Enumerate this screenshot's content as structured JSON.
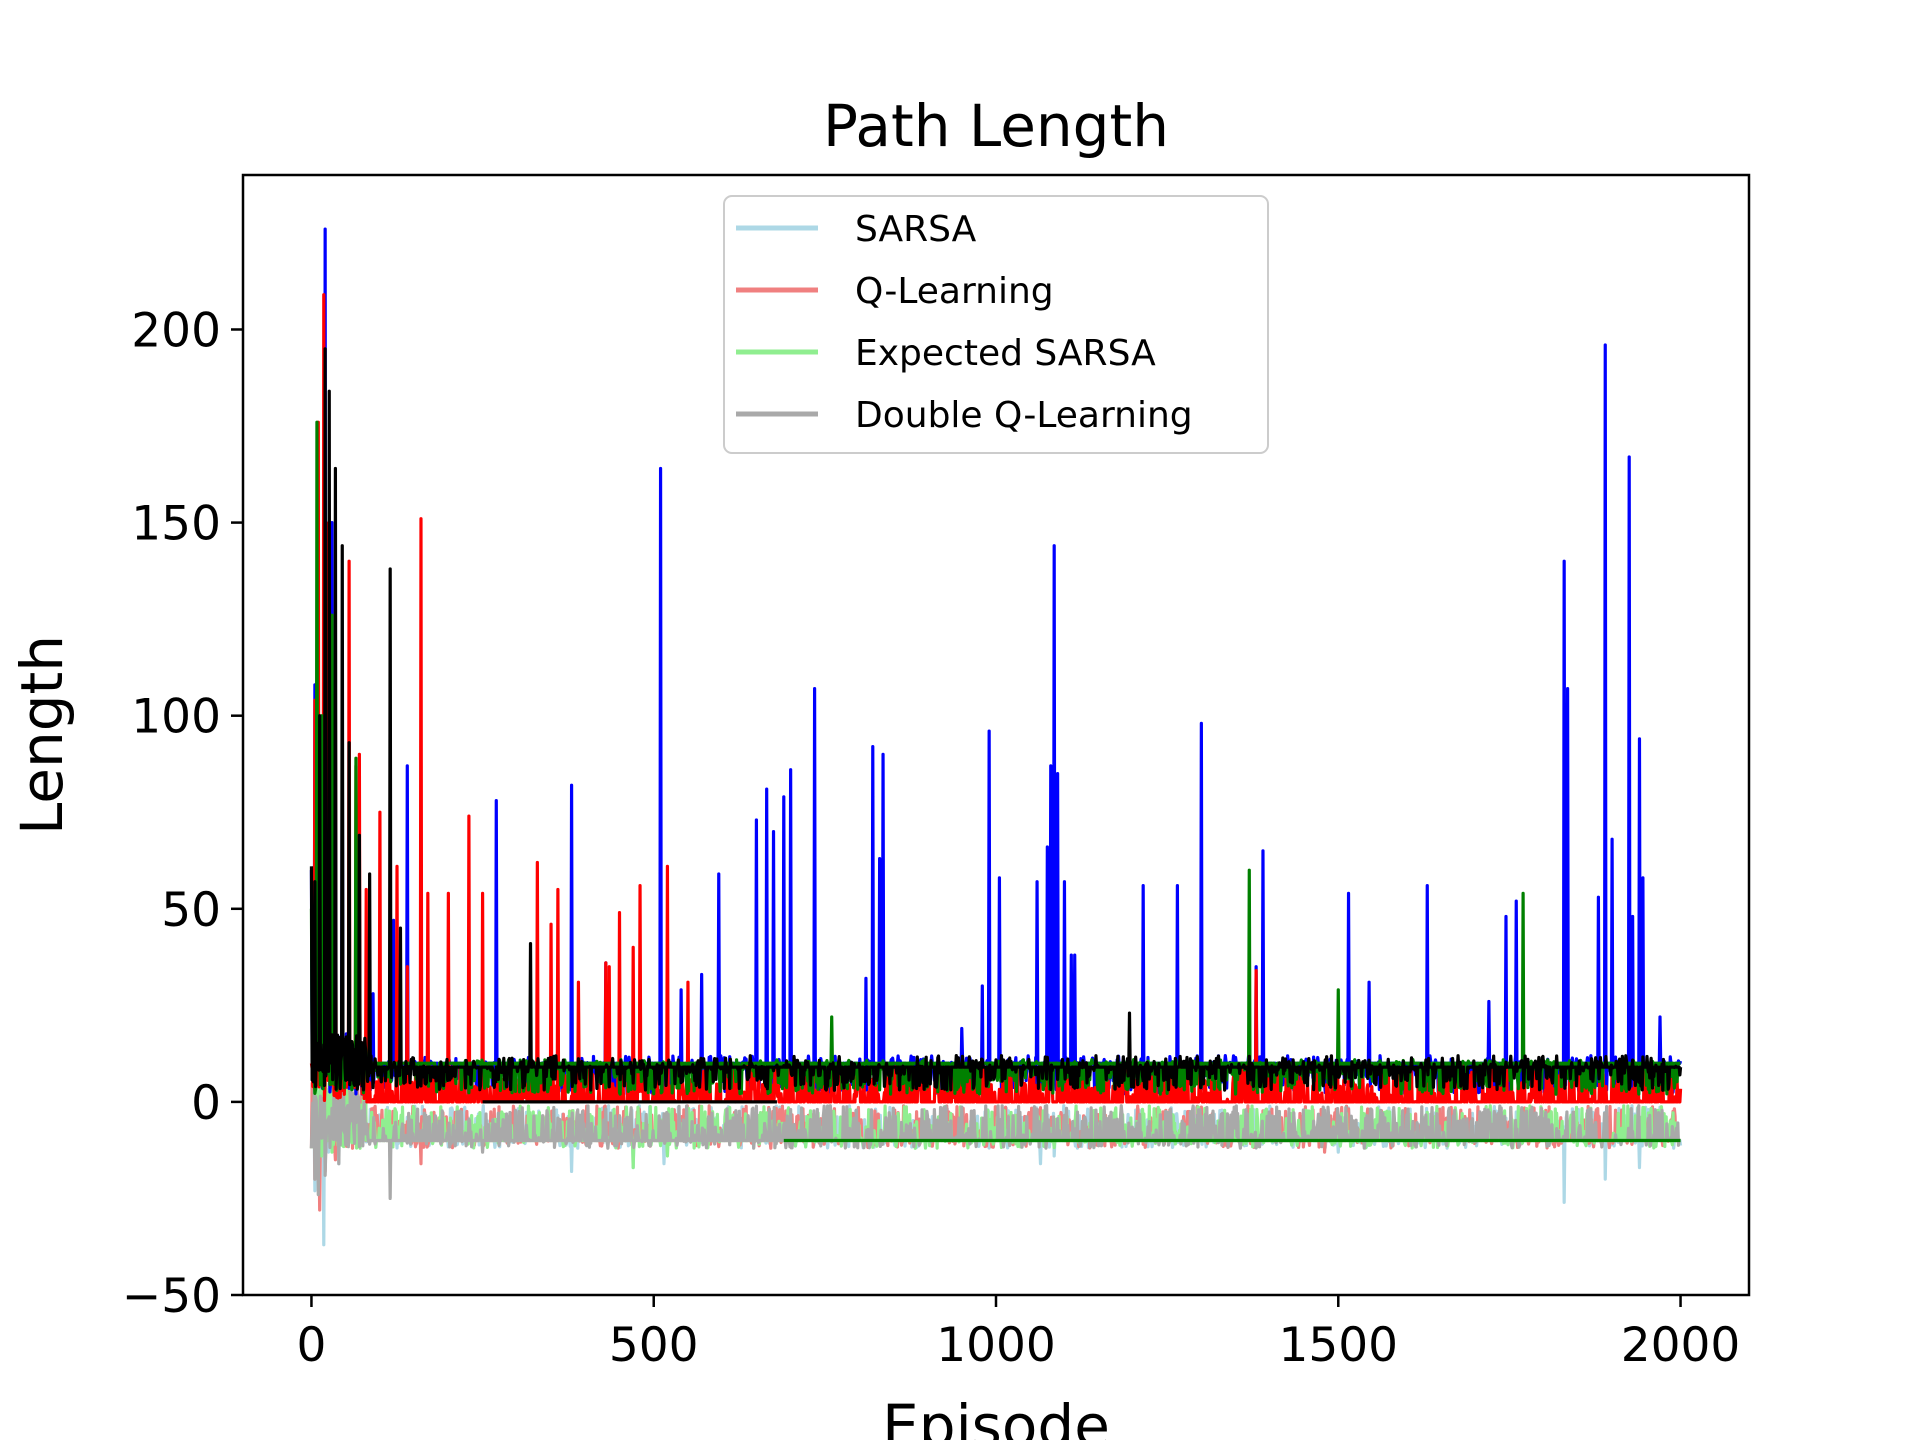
{
  "chart_data": {
    "type": "line",
    "title": "Path Length",
    "xlabel": "Episode",
    "ylabel": "Length",
    "xlim": [
      -100,
      2100
    ],
    "ylim": [
      -50,
      240
    ],
    "xticks": [
      0,
      500,
      1000,
      1500,
      2000
    ],
    "yticks": [
      -50,
      0,
      50,
      100,
      150,
      200
    ],
    "xtick_labels": [
      "0",
      "500",
      "1000",
      "1500",
      "2000"
    ],
    "ytick_labels": [
      "−50",
      "0",
      "50",
      "100",
      "150",
      "200"
    ],
    "grid": false,
    "legend_position": "upper-center",
    "legend": [
      {
        "label": "SARSA",
        "color": "#add8e6"
      },
      {
        "label": "Q-Learning",
        "color": "#f08080"
      },
      {
        "label": "Expected SARSA",
        "color": "#90ee90"
      },
      {
        "label": "Double Q-Learning",
        "color": "#a9a9a9"
      }
    ],
    "series": [
      {
        "name": "SARSA",
        "color": "#add8e6",
        "noise": [
          -12,
          -1
        ],
        "base": -10,
        "end": 2000,
        "points": [
          [
            0,
            -12
          ],
          [
            5,
            -23
          ],
          [
            12,
            -15
          ],
          [
            18,
            -37
          ],
          [
            25,
            -13
          ],
          [
            40,
            -16
          ],
          [
            60,
            -11
          ],
          [
            380,
            -18
          ],
          [
            470,
            -17
          ],
          [
            515,
            -16
          ],
          [
            1065,
            -16
          ],
          [
            1085,
            -14
          ],
          [
            1500,
            -13
          ],
          [
            1830,
            -26
          ],
          [
            1890,
            -20
          ],
          [
            1940,
            -17
          ]
        ]
      },
      {
        "name": "Q-Learning",
        "color": "#f08080",
        "noise": [
          -12,
          -1
        ],
        "base": -10,
        "end": 2000,
        "points": [
          [
            0,
            -12
          ],
          [
            5,
            -20
          ],
          [
            12,
            -28
          ],
          [
            20,
            -18
          ],
          [
            35,
            -15
          ],
          [
            60,
            -12
          ],
          [
            160,
            -16
          ],
          [
            1480,
            -13
          ]
        ]
      },
      {
        "name": "Expected SARSA",
        "color": "#90ee90",
        "noise": [
          -12,
          -1
        ],
        "base": -10,
        "end": 2000,
        "points": [
          [
            0,
            -12
          ],
          [
            6,
            -18
          ],
          [
            15,
            -14
          ],
          [
            30,
            -13
          ],
          [
            470,
            -17
          ],
          [
            520,
            -14
          ]
        ]
      },
      {
        "name": "Double Q-Learning",
        "color": "#a9a9a9",
        "noise": [
          -12,
          -1
        ],
        "base": -10,
        "end": 2000,
        "points": [
          [
            0,
            -12
          ],
          [
            5,
            -20
          ],
          [
            10,
            -24
          ],
          [
            20,
            -19
          ],
          [
            40,
            -16
          ],
          [
            115,
            -25
          ],
          [
            250,
            -13
          ]
        ]
      },
      {
        "name": "",
        "color": "#0000ff",
        "noise": [
          2,
          12
        ],
        "base": 10,
        "end": 2000,
        "points": [
          [
            0,
            60
          ],
          [
            5,
            108
          ],
          [
            10,
            97
          ],
          [
            15,
            92
          ],
          [
            20,
            226
          ],
          [
            25,
            128
          ],
          [
            30,
            150
          ],
          [
            45,
            100
          ],
          [
            70,
            60
          ],
          [
            90,
            28
          ],
          [
            120,
            47
          ],
          [
            140,
            87
          ],
          [
            270,
            78
          ],
          [
            380,
            82
          ],
          [
            430,
            36
          ],
          [
            510,
            164
          ],
          [
            540,
            29
          ],
          [
            570,
            33
          ],
          [
            595,
            59
          ],
          [
            650,
            73
          ],
          [
            665,
            81
          ],
          [
            675,
            70
          ],
          [
            690,
            79
          ],
          [
            700,
            86
          ],
          [
            735,
            107
          ],
          [
            810,
            32
          ],
          [
            820,
            92
          ],
          [
            830,
            63
          ],
          [
            835,
            90
          ],
          [
            950,
            19
          ],
          [
            980,
            30
          ],
          [
            990,
            96
          ],
          [
            1005,
            58
          ],
          [
            1060,
            57
          ],
          [
            1075,
            66
          ],
          [
            1080,
            87
          ],
          [
            1085,
            144
          ],
          [
            1090,
            85
          ],
          [
            1100,
            57
          ],
          [
            1110,
            38
          ],
          [
            1115,
            38
          ],
          [
            1215,
            56
          ],
          [
            1265,
            56
          ],
          [
            1300,
            98
          ],
          [
            1380,
            35
          ],
          [
            1390,
            65
          ],
          [
            1515,
            54
          ],
          [
            1545,
            31
          ],
          [
            1630,
            56
          ],
          [
            1720,
            26
          ],
          [
            1745,
            48
          ],
          [
            1760,
            52
          ],
          [
            1830,
            140
          ],
          [
            1835,
            107
          ],
          [
            1880,
            53
          ],
          [
            1890,
            196
          ],
          [
            1900,
            68
          ],
          [
            1925,
            167
          ],
          [
            1930,
            48
          ],
          [
            1940,
            94
          ],
          [
            1945,
            58
          ],
          [
            1970,
            22
          ]
        ]
      },
      {
        "name": "",
        "color": "#ff0000",
        "noise": [
          0,
          10
        ],
        "base": 0,
        "end": 2000,
        "points": [
          [
            5,
            104
          ],
          [
            10,
            176
          ],
          [
            18,
            209
          ],
          [
            25,
            150
          ],
          [
            35,
            100
          ],
          [
            55,
            140
          ],
          [
            65,
            87
          ],
          [
            70,
            90
          ],
          [
            80,
            55
          ],
          [
            100,
            75
          ],
          [
            125,
            61
          ],
          [
            140,
            35
          ],
          [
            160,
            151
          ],
          [
            170,
            54
          ],
          [
            200,
            54
          ],
          [
            230,
            74
          ],
          [
            250,
            54
          ],
          [
            330,
            62
          ],
          [
            350,
            46
          ],
          [
            360,
            55
          ],
          [
            390,
            31
          ],
          [
            430,
            36
          ],
          [
            435,
            35
          ],
          [
            450,
            49
          ],
          [
            470,
            40
          ],
          [
            480,
            56
          ],
          [
            520,
            61
          ],
          [
            550,
            31
          ],
          [
            1380,
            34
          ]
        ]
      },
      {
        "name": "",
        "color": "#008000",
        "noise": [
          2,
          11
        ],
        "base": 10,
        "end": 2000,
        "points": [
          [
            0,
            50
          ],
          [
            8,
            176
          ],
          [
            15,
            100
          ],
          [
            30,
            126
          ],
          [
            65,
            89
          ],
          [
            760,
            22
          ],
          [
            1370,
            60
          ],
          [
            1500,
            29
          ],
          [
            1770,
            54
          ]
        ]
      },
      {
        "name": "",
        "color": "#000000",
        "noise": [
          3,
          12
        ],
        "base": 9,
        "end": 2000,
        "points": [
          [
            0,
            61
          ],
          [
            5,
            57
          ],
          [
            12,
            100
          ],
          [
            20,
            195
          ],
          [
            26,
            184
          ],
          [
            35,
            164
          ],
          [
            45,
            144
          ],
          [
            55,
            93
          ],
          [
            70,
            69
          ],
          [
            85,
            59
          ],
          [
            115,
            138
          ],
          [
            130,
            45
          ],
          [
            320,
            41
          ],
          [
            1195,
            23
          ]
        ]
      },
      {
        "name": "",
        "color": "#000000",
        "noise": [
          0,
          0
        ],
        "base": 0,
        "start": 250,
        "end": 680,
        "points": []
      },
      {
        "name": "",
        "color": "#008000",
        "noise": [
          0,
          0
        ],
        "base": -10,
        "start": 690,
        "end": 2000,
        "points": [
          [
            680,
            0
          ],
          [
            690,
            -10
          ]
        ]
      }
    ]
  }
}
